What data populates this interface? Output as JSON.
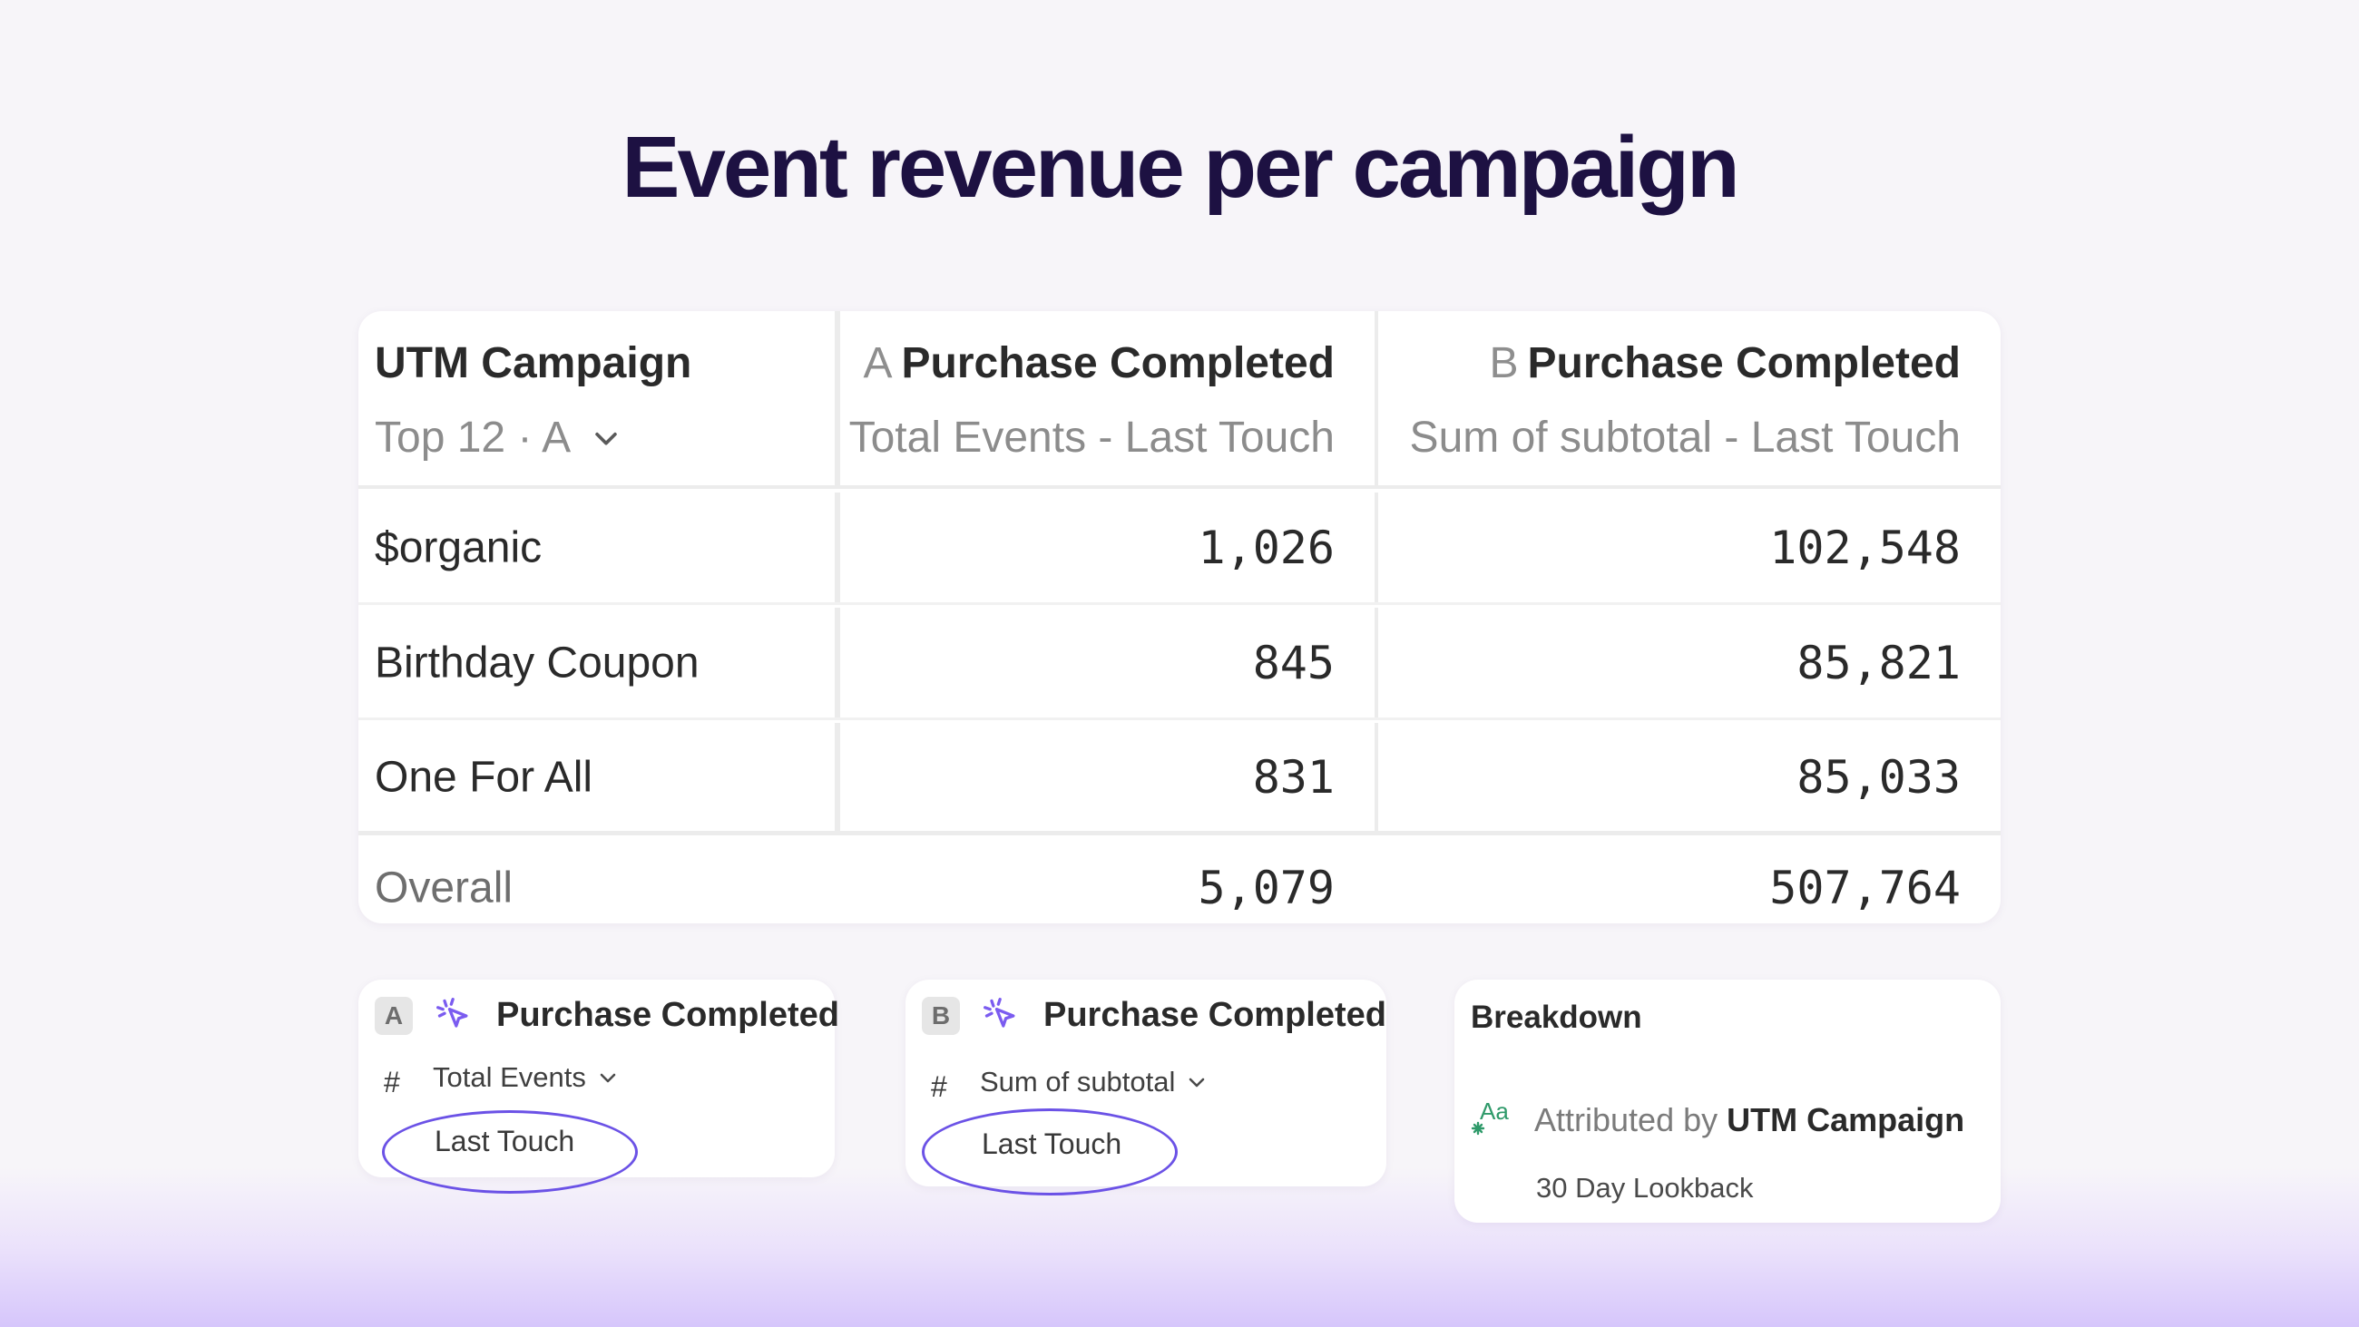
{
  "title": "Event revenue per campaign",
  "table": {
    "columns": [
      {
        "letter": "",
        "name": "UTM Campaign",
        "sub": "Top 12 · A"
      },
      {
        "letter": "A",
        "name": "Purchase Completed",
        "sub": "Total Events - Last Touch"
      },
      {
        "letter": "B",
        "name": "Purchase Completed",
        "sub": "Sum of subtotal - Last Touch"
      }
    ],
    "rows": [
      {
        "label": "$organic",
        "a": "1,026",
        "b": "102,548"
      },
      {
        "label": "Birthday Coupon",
        "a": "845",
        "b": "85,821"
      },
      {
        "label": "One For All",
        "a": "831",
        "b": "85,033"
      }
    ],
    "total": {
      "label": "Overall",
      "a": "5,079",
      "b": "507,764"
    }
  },
  "metrics": [
    {
      "letter": "A",
      "event": "Purchase Completed",
      "measure": "Total Events",
      "attribution": "Last Touch"
    },
    {
      "letter": "B",
      "event": "Purchase Completed",
      "measure": "Sum of subtotal",
      "attribution": "Last Touch"
    }
  ],
  "breakdown": {
    "title": "Breakdown",
    "prefix": "Attributed by",
    "property": "UTM Campaign",
    "lookback": "30 Day Lookback",
    "icon_text": "Aa"
  },
  "icons": {
    "event": "cursor-click-icon",
    "dropdown": "chevron-down-icon",
    "property": "text-property-icon"
  },
  "colors": {
    "title": "#1d1142",
    "accent": "#6b52e6",
    "property_icon": "#2f9a6a"
  }
}
